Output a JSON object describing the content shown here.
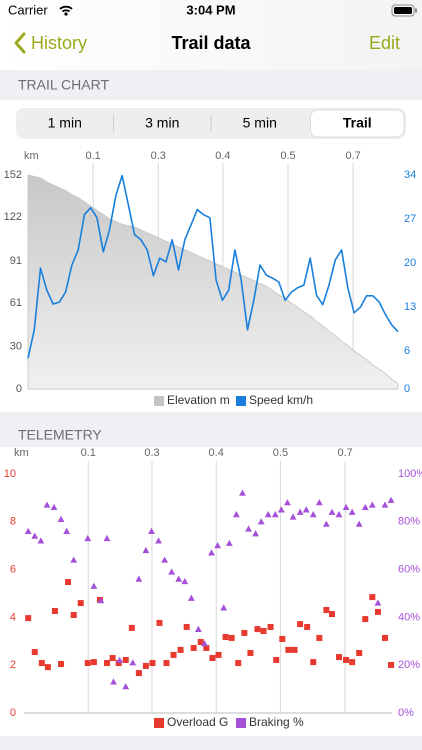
{
  "status_bar": {
    "carrier": "Carrier",
    "time": "3:04 PM"
  },
  "nav_bar": {
    "back": "History",
    "title": "Trail data",
    "action": "Edit"
  },
  "sections": [
    {
      "header": "TRAIL CHART"
    },
    {
      "header": "TELEMETRY"
    }
  ],
  "segmented_control": {
    "options": [
      "1 min",
      "3 min",
      "5 min",
      "Trail"
    ],
    "selected": 3
  },
  "chart_data": [
    {
      "type": "line",
      "x_label": "km",
      "x": [
        0,
        0.013,
        0.026,
        0.039,
        0.052,
        0.065,
        0.078,
        0.091,
        0.104,
        0.117,
        0.13,
        0.143,
        0.156,
        0.169,
        0.182,
        0.195,
        0.208,
        0.221,
        0.234,
        0.247,
        0.26,
        0.273,
        0.286,
        0.299,
        0.312,
        0.325,
        0.338,
        0.351,
        0.364,
        0.377,
        0.39,
        0.403,
        0.416,
        0.429,
        0.442,
        0.455,
        0.468,
        0.481,
        0.494,
        0.507,
        0.52,
        0.533,
        0.546,
        0.559,
        0.572,
        0.585,
        0.598,
        0.611,
        0.624,
        0.637,
        0.65,
        0.663,
        0.676,
        0.689,
        0.702,
        0.715,
        0.728,
        0.741,
        0.754,
        0.767
      ],
      "xlim": [
        0,
        0.767
      ],
      "xticks": [
        {
          "value": 0.135,
          "label": "0.1"
        },
        {
          "value": 0.27,
          "label": "0.3"
        },
        {
          "value": 0.404,
          "label": "0.4"
        },
        {
          "value": 0.539,
          "label": "0.5"
        },
        {
          "value": 0.674,
          "label": "0.7"
        }
      ],
      "xgrid": true,
      "ylim": [
        0,
        152
      ],
      "yticks": [
        0,
        30,
        61,
        91,
        122,
        152
      ],
      "y2lim": [
        0,
        34
      ],
      "y2ticks": [
        0,
        6,
        13,
        20,
        27,
        34
      ],
      "series": [
        {
          "name": "Elevation m",
          "color": "#c4c4c4",
          "fill": true,
          "values": [
            152,
            151,
            150,
            147,
            145,
            143,
            141,
            138,
            136,
            133,
            130,
            127,
            124,
            121,
            119,
            117,
            116,
            115,
            113,
            111,
            109,
            107,
            105,
            103,
            101,
            99,
            97,
            95,
            93,
            91,
            89,
            87,
            85,
            83,
            81,
            79,
            77,
            75,
            73,
            70,
            67,
            64,
            61,
            58,
            55,
            52,
            48,
            45,
            41,
            38,
            34,
            31,
            27,
            24,
            21,
            17,
            14,
            11,
            7,
            4
          ]
        },
        {
          "name": "Speed km/h",
          "color": "#1a7fdc",
          "axis": "y2",
          "values": [
            4.9,
            9.4,
            19.2,
            15.7,
            13.5,
            13.8,
            15.4,
            19.7,
            22.1,
            27.7,
            28.8,
            27.2,
            21.8,
            25.3,
            30.7,
            33.9,
            29.3,
            24.5,
            23.7,
            22.1,
            18,
            20.8,
            20.2,
            23.7,
            18.9,
            23.7,
            26.1,
            28.5,
            27.7,
            27.2,
            17.3,
            14.1,
            15.7,
            22.1,
            17.3,
            9.4,
            14.1,
            19.7,
            18.1,
            17.6,
            17,
            14.1,
            15.4,
            16.1,
            16.5,
            20.8,
            14.9,
            13.4,
            16.5,
            20.5,
            22.1,
            16.1,
            12.1,
            13,
            14.8,
            14.8,
            13.8,
            11.8,
            10.2,
            9.1
          ]
        }
      ]
    },
    {
      "type": "scatter",
      "x_label": "km",
      "xlim": [
        0,
        0.785
      ],
      "xticks": [
        {
          "value": 0.137,
          "label": "0.1"
        },
        {
          "value": 0.273,
          "label": "0.3"
        },
        {
          "value": 0.41,
          "label": "0.4"
        },
        {
          "value": 0.547,
          "label": "0.5"
        },
        {
          "value": 0.685,
          "label": "0.7"
        }
      ],
      "xgrid": true,
      "ylim": [
        0,
        10
      ],
      "yticks": [
        0,
        2,
        4,
        6,
        8,
        10
      ],
      "y2lim": [
        0,
        100
      ],
      "y2ticks": [
        {
          "value": 0,
          "label": "0%"
        },
        {
          "value": 20,
          "label": "20%"
        },
        {
          "value": 40,
          "label": "40%"
        },
        {
          "value": 60,
          "label": "60%"
        },
        {
          "value": 80,
          "label": "80%"
        },
        {
          "value": 100,
          "label": "100%"
        }
      ],
      "series": [
        {
          "name": "Overload G",
          "color": "#e8392f",
          "marker": "square",
          "x": [
            0.009,
            0.023,
            0.038,
            0.051,
            0.066,
            0.079,
            0.094,
            0.106,
            0.121,
            0.136,
            0.149,
            0.162,
            0.177,
            0.189,
            0.202,
            0.217,
            0.23,
            0.245,
            0.26,
            0.274,
            0.289,
            0.304,
            0.319,
            0.334,
            0.347,
            0.362,
            0.377,
            0.389,
            0.402,
            0.415,
            0.43,
            0.443,
            0.457,
            0.47,
            0.483,
            0.498,
            0.511,
            0.526,
            0.538,
            0.551,
            0.564,
            0.577,
            0.589,
            0.604,
            0.617,
            0.63,
            0.645,
            0.657,
            0.672,
            0.687,
            0.7,
            0.715,
            0.728,
            0.743,
            0.755,
            0.77,
            0.783
          ],
          "values": [
            3.97,
            2.55,
            2.09,
            1.92,
            4.27,
            2.05,
            5.48,
            4.1,
            4.6,
            2.09,
            2.13,
            4.73,
            2.09,
            2.3,
            2.09,
            2.22,
            3.56,
            1.67,
            1.97,
            2.09,
            3.77,
            2.09,
            2.43,
            2.64,
            3.6,
            2.72,
            2.97,
            2.72,
            2.3,
            2.43,
            3.18,
            3.14,
            2.09,
            3.35,
            2.51,
            3.51,
            3.43,
            3.6,
            2.22,
            3.1,
            2.64,
            2.64,
            3.72,
            3.6,
            2.13,
            3.14,
            4.31,
            4.14,
            2.34,
            2.22,
            2.13,
            2.51,
            3.93,
            4.85,
            4.23,
            3.14,
            2.01
          ]
        },
        {
          "name": "Braking %",
          "color": "#a550d8",
          "marker": "triangle",
          "axis": "y2",
          "x": [
            0.009,
            0.023,
            0.036,
            0.049,
            0.064,
            0.079,
            0.091,
            0.106,
            0.136,
            0.149,
            0.164,
            0.177,
            0.191,
            0.204,
            0.217,
            0.232,
            0.245,
            0.26,
            0.272,
            0.287,
            0.3,
            0.315,
            0.33,
            0.343,
            0.357,
            0.372,
            0.385,
            0.4,
            0.413,
            0.426,
            0.438,
            0.453,
            0.466,
            0.479,
            0.494,
            0.506,
            0.521,
            0.536,
            0.549,
            0.562,
            0.574,
            0.589,
            0.602,
            0.617,
            0.63,
            0.645,
            0.657,
            0.672,
            0.687,
            0.7,
            0.715,
            0.728,
            0.743,
            0.755,
            0.77,
            0.783
          ],
          "values": [
            76,
            74,
            72,
            87,
            86,
            81,
            76,
            64,
            73,
            53,
            47,
            73,
            13,
            22,
            11,
            21,
            56,
            68,
            76,
            72,
            64,
            59,
            56,
            55,
            48,
            35,
            29,
            67,
            70,
            44,
            71,
            83,
            92,
            77,
            75,
            80,
            83,
            83,
            85,
            88,
            82,
            84,
            85,
            83,
            88,
            79,
            84,
            83,
            86,
            84,
            79,
            86,
            87,
            46,
            87,
            89
          ]
        }
      ]
    }
  ]
}
